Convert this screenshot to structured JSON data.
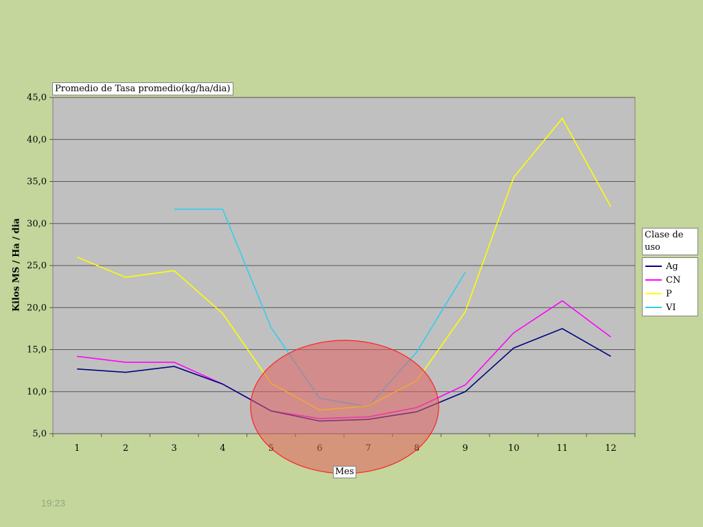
{
  "chart_data": {
    "type": "line",
    "title": "Promedio de Tasa promedio(kg/ha/dia)",
    "xlabel": "Mes",
    "ylabel": "Kilos MS / Ha / dia",
    "ylim": [
      5,
      45
    ],
    "y_ticks": [
      "5,0",
      "10,0",
      "15,0",
      "20,0",
      "25,0",
      "30,0",
      "35,0",
      "40,0",
      "45,0"
    ],
    "categories": [
      "1",
      "2",
      "3",
      "4",
      "5",
      "6",
      "7",
      "8",
      "9",
      "10",
      "11",
      "12"
    ],
    "legend_title": "Clase de uso",
    "legend_position": "right",
    "grid": true,
    "series": [
      {
        "name": "Ag",
        "color": "#000080",
        "values": [
          12.7,
          12.3,
          13.0,
          10.9,
          7.7,
          6.5,
          6.7,
          7.6,
          10.0,
          15.2,
          17.5,
          14.2
        ]
      },
      {
        "name": "CN",
        "color": "#ff00ff",
        "values": [
          14.2,
          13.5,
          13.5,
          10.9,
          7.7,
          6.8,
          7.0,
          8.1,
          10.8,
          17.0,
          20.8,
          16.5
        ]
      },
      {
        "name": "P",
        "color": "#ffff00",
        "values": [
          26.0,
          23.6,
          24.4,
          19.3,
          11.0,
          7.8,
          8.3,
          11.3,
          19.5,
          35.5,
          42.5,
          32.0
        ]
      },
      {
        "name": "VI",
        "color": "#33ccee",
        "values": [
          null,
          null,
          31.7,
          31.7,
          17.6,
          9.2,
          8.2,
          14.7,
          24.2,
          null,
          null,
          null
        ]
      }
    ],
    "annotation": {
      "shape": "ellipse",
      "fill": "#e06060",
      "stroke": "#ff2020"
    },
    "plot_background": "#c0c0c0"
  },
  "slide": {
    "time": "19:23"
  }
}
